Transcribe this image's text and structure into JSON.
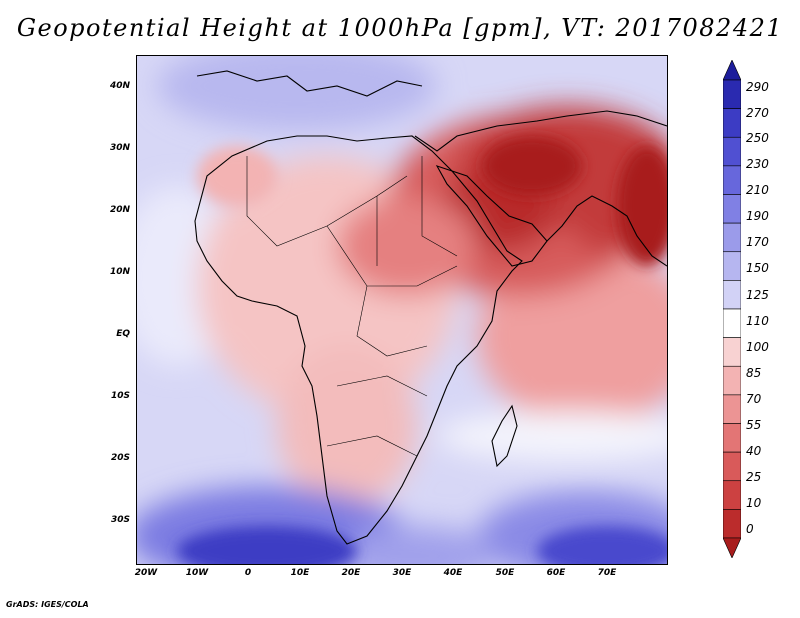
{
  "title": "Geopotential Height at 1000hPa [gpm], VT: 2017082421",
  "footer": "GrADS: IGES/COLA",
  "lat_labels": [
    "40N",
    "30N",
    "20N",
    "10N",
    "EQ",
    "10S",
    "20S",
    "30S"
  ],
  "lon_labels": [
    "20W",
    "10W",
    "0",
    "10E",
    "20E",
    "30E",
    "40E",
    "50E",
    "60E",
    "70E"
  ],
  "colorbar": {
    "levels": [
      "290",
      "270",
      "250",
      "230",
      "210",
      "190",
      "170",
      "150",
      "125",
      "110",
      "100",
      "85",
      "70",
      "55",
      "40",
      "25",
      "10",
      "0"
    ],
    "colors": [
      "#1d1d9b",
      "#2a2ab0",
      "#3c3cc4",
      "#5050d2",
      "#6767dc",
      "#8080e4",
      "#9b9bea",
      "#b6b6f0",
      "#d2d2f6",
      "#ffffff",
      "#f8d2d2",
      "#f3b3b3",
      "#ec9494",
      "#e37575",
      "#d95a5a",
      "#cc4141",
      "#bb2c2c",
      "#a81c1c"
    ]
  }
}
